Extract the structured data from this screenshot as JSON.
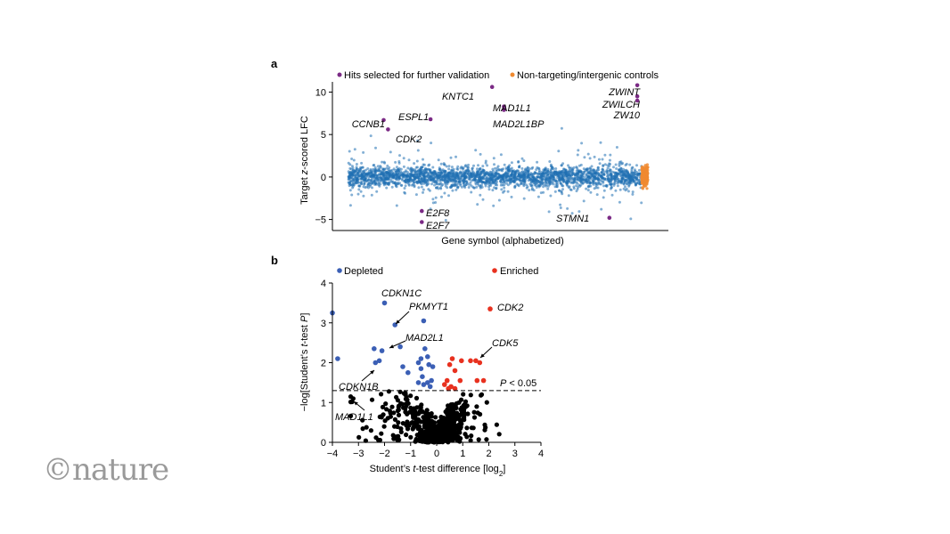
{
  "watermark": "©nature",
  "colors": {
    "gene": "#1f6fb2",
    "control": "#f08a30",
    "hit": "#7b2a85",
    "depleted": "#3b5fb5",
    "enriched": "#e8311f",
    "ns": "#000000"
  },
  "chart_data": [
    {
      "panel": "a",
      "type": "scatter",
      "legend": [
        {
          "label": "Hits selected for further validation",
          "color": "#7b2a85"
        },
        {
          "label": "Non-targeting/intergenic controls",
          "color": "#f08a30"
        }
      ],
      "legend_placement": "top",
      "xlabel": "Gene symbol (alphabetized)",
      "ylabel_parts": [
        "Target ",
        "z",
        "-scored LFC"
      ],
      "ylim": [
        -6.3,
        11.2
      ],
      "yticks": [
        {
          "v": -5,
          "label": "−5"
        },
        {
          "v": 0,
          "label": "0"
        },
        {
          "v": 5,
          "label": "5"
        },
        {
          "v": 10,
          "label": "10"
        }
      ],
      "bulk_sd": 1.1,
      "hits": [
        {
          "gene": "CCNB1",
          "x": 0.12,
          "y": 6.7
        },
        {
          "gene": "CDK2",
          "x": 0.135,
          "y": 5.6
        },
        {
          "gene": "ESPL1",
          "x": 0.28,
          "y": 6.8
        },
        {
          "gene": "KNTC1",
          "x": 0.49,
          "y": 10.6
        },
        {
          "gene": "MAD1L1",
          "x": 0.53,
          "y": 8.3
        },
        {
          "gene": "MAD2L1BP",
          "x": 0.53,
          "y": 7.9
        },
        {
          "gene": "E2F8",
          "x": 0.25,
          "y": -4.0
        },
        {
          "gene": "E2F7",
          "x": 0.25,
          "y": -5.3
        },
        {
          "gene": "STMN1",
          "x": 0.89,
          "y": -4.8
        },
        {
          "gene": "ZWINT",
          "x": 0.985,
          "y": 10.8
        },
        {
          "gene": "ZWILCH",
          "x": 0.985,
          "y": 9.5
        },
        {
          "gene": "ZW10",
          "x": 0.985,
          "y": 9.0
        }
      ],
      "labels": [
        {
          "text": "CCNB1"
        },
        {
          "text": "CDK2"
        },
        {
          "text": "ESPL1"
        },
        {
          "text": "KNTC1"
        },
        {
          "text": "MAD1L1"
        },
        {
          "text": "MAD2L1BP"
        },
        {
          "text": "E2F8"
        },
        {
          "text": "E2F7"
        },
        {
          "text": "STMN1"
        },
        {
          "text": "ZWINT"
        },
        {
          "text": "ZWILCH"
        },
        {
          "text": "ZW10"
        }
      ]
    },
    {
      "panel": "b",
      "type": "scatter",
      "legend": [
        {
          "label": "Depleted",
          "color": "#3b5fb5"
        },
        {
          "label": "Enriched",
          "color": "#e8311f"
        }
      ],
      "xlabel_parts": [
        "Student’s ",
        "t",
        "-test difference [log",
        "2",
        "]"
      ],
      "ylabel_parts": [
        "−log[Student’s ",
        "t",
        "-test ",
        "P",
        "]"
      ],
      "xlim": [
        -4,
        4
      ],
      "ylim": [
        0,
        4
      ],
      "xticks": [
        -4,
        -3,
        -2,
        -1,
        0,
        1,
        2,
        3,
        4
      ],
      "yticks": [
        0,
        1,
        2,
        3,
        4
      ],
      "threshold": {
        "y": 1.3,
        "label": "P < 0.05"
      },
      "depleted": [
        [
          -4.0,
          3.25
        ],
        [
          -3.8,
          2.1
        ],
        [
          -2.0,
          3.5
        ],
        [
          -1.6,
          2.95
        ],
        [
          -0.5,
          3.05
        ],
        [
          -2.4,
          2.35
        ],
        [
          -2.1,
          2.3
        ],
        [
          -1.4,
          2.4
        ],
        [
          -2.35,
          2.0
        ],
        [
          -2.2,
          2.05
        ],
        [
          -1.3,
          1.9
        ],
        [
          -1.1,
          1.75
        ],
        [
          -0.7,
          2.0
        ],
        [
          -0.6,
          2.1
        ],
        [
          -0.45,
          2.35
        ],
        [
          -0.35,
          2.15
        ],
        [
          -0.3,
          1.95
        ],
        [
          -0.6,
          1.85
        ],
        [
          -0.55,
          1.65
        ],
        [
          -0.35,
          1.5
        ],
        [
          -0.7,
          1.5
        ],
        [
          -0.2,
          1.55
        ],
        [
          -0.15,
          1.9
        ],
        [
          -0.5,
          1.45
        ],
        [
          -0.25,
          1.4
        ]
      ],
      "enriched": [
        [
          2.05,
          3.35
        ],
        [
          1.5,
          2.05
        ],
        [
          1.3,
          2.05
        ],
        [
          1.65,
          2.0
        ],
        [
          0.95,
          2.05
        ],
        [
          0.6,
          2.1
        ],
        [
          0.5,
          1.95
        ],
        [
          0.7,
          1.8
        ],
        [
          0.4,
          1.55
        ],
        [
          0.55,
          1.4
        ],
        [
          0.7,
          1.35
        ],
        [
          0.3,
          1.45
        ],
        [
          0.45,
          1.35
        ],
        [
          1.8,
          1.55
        ],
        [
          1.55,
          1.55
        ],
        [
          0.9,
          1.55
        ]
      ],
      "annotations": [
        {
          "text": "CDKN1C"
        },
        {
          "text": "PKMYT1"
        },
        {
          "text": "MAD2L1"
        },
        {
          "text": "CDKN1B"
        },
        {
          "text": "MAD1L1"
        },
        {
          "text": "CDK2"
        },
        {
          "text": "CDK5"
        }
      ]
    }
  ]
}
